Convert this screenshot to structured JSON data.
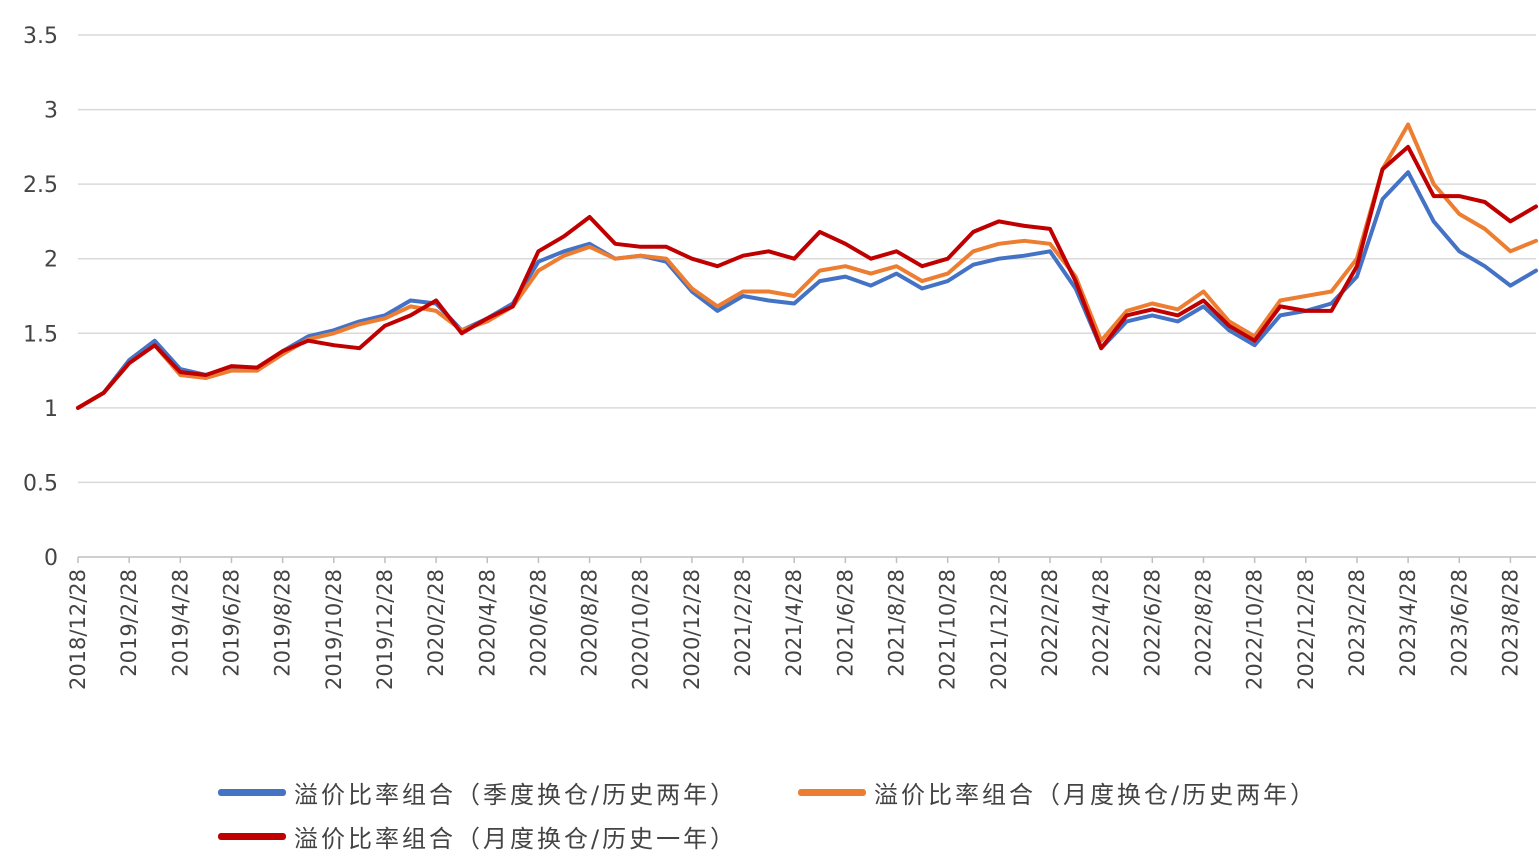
{
  "chart_data": {
    "type": "line",
    "title": "",
    "xlabel": "",
    "ylabel": "",
    "ylim": [
      0,
      3.5
    ],
    "y_ticks": [
      {
        "value": 0,
        "label": "0"
      },
      {
        "value": 0.5,
        "label": "0.5"
      },
      {
        "value": 1,
        "label": "1"
      },
      {
        "value": 1.5,
        "label": "1.5"
      },
      {
        "value": 2,
        "label": "2"
      },
      {
        "value": 2.5,
        "label": "2.5"
      },
      {
        "value": 3,
        "label": "3"
      },
      {
        "value": 3.5,
        "label": "3.5"
      }
    ],
    "grid": "horizontal",
    "legend_position": "bottom",
    "x": [
      "2018/12/28",
      "2019/1/28",
      "2019/2/28",
      "2019/3/28",
      "2019/4/28",
      "2019/5/28",
      "2019/6/28",
      "2019/7/28",
      "2019/8/28",
      "2019/9/28",
      "2019/10/28",
      "2019/11/28",
      "2019/12/28",
      "2020/1/28",
      "2020/2/28",
      "2020/3/28",
      "2020/4/28",
      "2020/5/28",
      "2020/6/28",
      "2020/7/28",
      "2020/8/28",
      "2020/9/28",
      "2020/10/28",
      "2020/11/28",
      "2020/12/28",
      "2021/1/28",
      "2021/2/28",
      "2021/3/28",
      "2021/4/28",
      "2021/5/28",
      "2021/6/28",
      "2021/7/28",
      "2021/8/28",
      "2021/9/28",
      "2021/10/28",
      "2021/11/28",
      "2021/12/28",
      "2022/1/28",
      "2022/2/28",
      "2022/3/28",
      "2022/4/28",
      "2022/5/28",
      "2022/6/28",
      "2022/7/28",
      "2022/8/28",
      "2022/9/28",
      "2022/10/28",
      "2022/11/28",
      "2022/12/28",
      "2023/1/28",
      "2023/2/28",
      "2023/3/28",
      "2023/4/28",
      "2023/5/28",
      "2023/6/28",
      "2023/7/28",
      "2023/8/28",
      "2023/9/28"
    ],
    "x_tick_labels": [
      "2018/12/28",
      "2019/2/28",
      "2019/4/28",
      "2019/6/28",
      "2019/8/28",
      "2019/10/28",
      "2019/12/28",
      "2020/2/28",
      "2020/4/28",
      "2020/6/28",
      "2020/8/28",
      "2020/10/28",
      "2020/12/28",
      "2021/2/28",
      "2021/4/28",
      "2021/6/28",
      "2021/8/28",
      "2021/10/28",
      "2021/12/28",
      "2022/2/28",
      "2022/4/28",
      "2022/6/28",
      "2022/8/28",
      "2022/10/28",
      "2022/12/28",
      "2023/2/28",
      "2023/4/28",
      "2023/6/28",
      "2023/8/28"
    ],
    "series": [
      {
        "name": "溢价比率组合（季度换仓/历史两年）",
        "color": "#4472C4",
        "values": [
          1.0,
          1.1,
          1.32,
          1.45,
          1.26,
          1.22,
          1.27,
          1.25,
          1.38,
          1.48,
          1.52,
          1.58,
          1.62,
          1.72,
          1.7,
          1.52,
          1.6,
          1.7,
          1.98,
          2.05,
          2.1,
          2.0,
          2.02,
          1.98,
          1.78,
          1.65,
          1.75,
          1.72,
          1.7,
          1.85,
          1.88,
          1.82,
          1.9,
          1.8,
          1.85,
          1.96,
          2.0,
          2.02,
          2.05,
          1.8,
          1.4,
          1.58,
          1.62,
          1.58,
          1.68,
          1.52,
          1.42,
          1.62,
          1.65,
          1.7,
          1.88,
          2.4,
          2.58,
          2.25,
          2.05,
          1.95,
          1.82,
          1.92
        ]
      },
      {
        "name": "溢价比率组合（月度换仓/历史两年）",
        "color": "#ED7D31",
        "values": [
          1.0,
          1.1,
          1.3,
          1.42,
          1.22,
          1.2,
          1.25,
          1.25,
          1.36,
          1.46,
          1.5,
          1.56,
          1.6,
          1.68,
          1.65,
          1.52,
          1.58,
          1.68,
          1.92,
          2.02,
          2.08,
          2.0,
          2.02,
          2.0,
          1.8,
          1.68,
          1.78,
          1.78,
          1.75,
          1.92,
          1.95,
          1.9,
          1.95,
          1.85,
          1.9,
          2.05,
          2.1,
          2.12,
          2.1,
          1.88,
          1.45,
          1.65,
          1.7,
          1.66,
          1.78,
          1.58,
          1.48,
          1.72,
          1.75,
          1.78,
          2.0,
          2.6,
          2.9,
          2.5,
          2.3,
          2.2,
          2.05,
          2.12
        ]
      },
      {
        "name": "溢价比率组合（月度换仓/历史一年）",
        "color": "#C00000",
        "values": [
          1.0,
          1.1,
          1.3,
          1.42,
          1.24,
          1.22,
          1.28,
          1.27,
          1.38,
          1.45,
          1.42,
          1.4,
          1.55,
          1.62,
          1.72,
          1.5,
          1.6,
          1.68,
          2.05,
          2.15,
          2.28,
          2.1,
          2.08,
          2.08,
          2.0,
          1.95,
          2.02,
          2.05,
          2.0,
          2.18,
          2.1,
          2.0,
          2.05,
          1.95,
          2.0,
          2.18,
          2.25,
          2.22,
          2.2,
          1.85,
          1.4,
          1.62,
          1.66,
          1.62,
          1.72,
          1.55,
          1.45,
          1.68,
          1.65,
          1.65,
          1.95,
          2.6,
          2.75,
          2.42,
          2.42,
          2.38,
          2.25,
          2.35
        ]
      }
    ]
  }
}
